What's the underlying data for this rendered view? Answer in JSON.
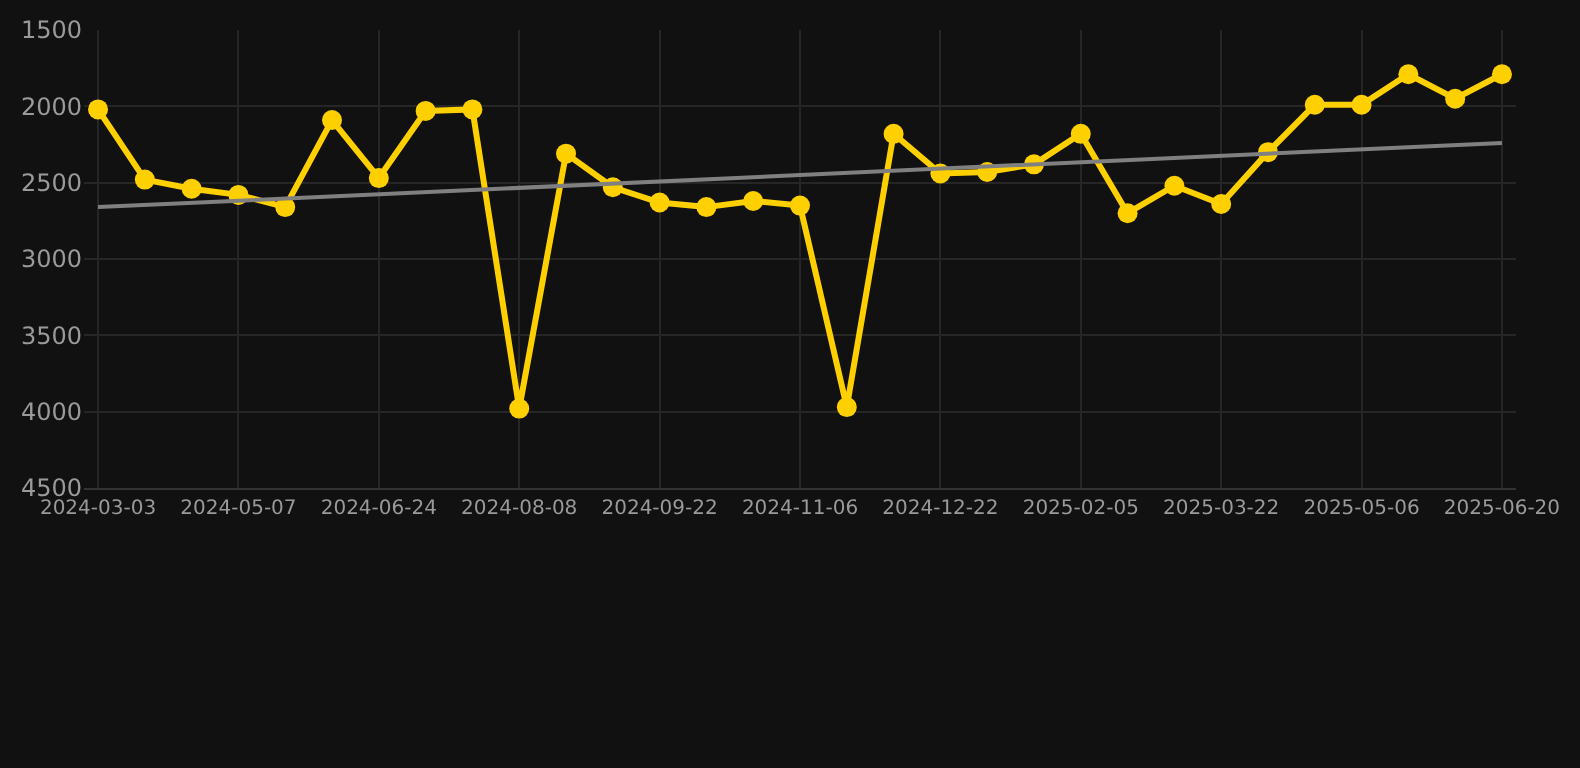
{
  "chart_data": {
    "type": "line",
    "categories": [
      "2024-03-03",
      null,
      null,
      "2024-05-07",
      null,
      null,
      "2024-06-24",
      null,
      null,
      "2024-08-08",
      null,
      null,
      "2024-09-22",
      null,
      null,
      "2024-11-06",
      null,
      null,
      "2024-12-22",
      null,
      null,
      "2025-02-05",
      null,
      null,
      "2025-03-22",
      null,
      null,
      "2025-05-06",
      null,
      null,
      "2025-06-20"
    ],
    "series": [
      {
        "color": "#ffd000",
        "marker": "circle",
        "values": [
          2020,
          2480,
          2540,
          2580,
          2660,
          2090,
          2470,
          2030,
          2020,
          3980,
          2310,
          2530,
          2630,
          2660,
          2620,
          2650,
          3970,
          2180,
          2440,
          2430,
          2380,
          2180,
          2700,
          2520,
          2640,
          2300,
          1990,
          1990,
          1790,
          1950,
          1790
        ]
      },
      {
        "color": "#808080",
        "marker": "none",
        "values": [
          2660,
          null,
          null,
          null,
          null,
          null,
          null,
          null,
          null,
          null,
          null,
          null,
          null,
          null,
          null,
          null,
          null,
          null,
          null,
          null,
          null,
          null,
          null,
          null,
          null,
          null,
          null,
          null,
          null,
          null,
          2240
        ]
      }
    ],
    "ylim": [
      4500,
      1500
    ],
    "yticks": [
      1500,
      2000,
      2500,
      3000,
      3500,
      4000,
      4500
    ],
    "grid": true
  }
}
